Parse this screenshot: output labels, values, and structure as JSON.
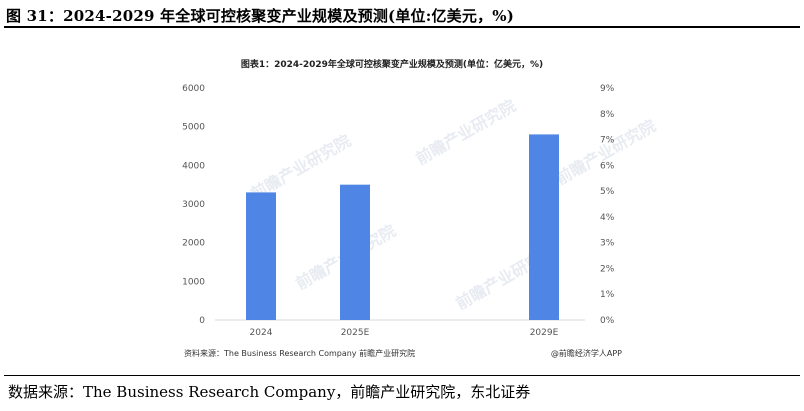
{
  "figure": {
    "title": "图 31：2024-2029 年全球可控核聚变产业规模及预测(单位:亿美元，%)",
    "source": "数据来源：The Business Research Company，前瞻产业研究院，东北证券"
  },
  "chart_data": {
    "type": "bar",
    "title": "图表1：2024-2029年全球可控核聚变产业规模及预测(单位：亿美元，%)",
    "categories": [
      "2024",
      "2025E",
      "2029E"
    ],
    "series": [
      {
        "values": [
          3300,
          3500,
          4800
        ],
        "color": "#4f86e6"
      }
    ],
    "ylim": [
      0,
      6000
    ],
    "yticks": [
      "6000",
      "5000",
      "4000",
      "3000",
      "2000",
      "1000",
      "0"
    ],
    "y2lim": [
      0,
      9
    ],
    "y2ticks": [
      "9%",
      "8%",
      "7%",
      "6%",
      "5%",
      "4%",
      "3%",
      "2%",
      "1%",
      "0%"
    ],
    "grid": false,
    "legend": "none",
    "note_left": "资料来源：The Business Research Company 前瞻产业研究院",
    "note_right": "@前瞻经济学人APP",
    "watermark": "前瞻产业研究院"
  }
}
